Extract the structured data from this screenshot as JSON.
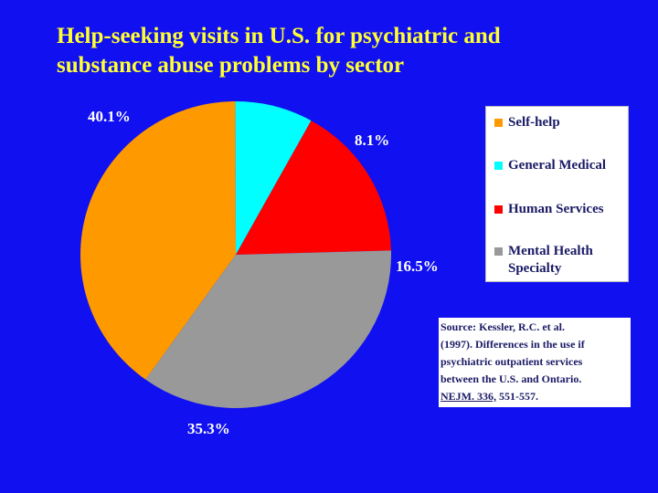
{
  "title_lines": [
    "Help-seeking visits in U.S. for psychiatric and",
    "substance abuse problems by sector"
  ],
  "chart_data": {
    "type": "pie",
    "title": "Help-seeking visits in U.S. for psychiatric and substance abuse problems by sector",
    "legend_position": "right",
    "slices": [
      {
        "label": "Self-help",
        "value": 40.1,
        "value_label": "40.1%",
        "color": "#ff9900"
      },
      {
        "label": "General Medical",
        "value": 8.1,
        "value_label": "8.1%",
        "color": "#00ffff"
      },
      {
        "label": "Human Services",
        "value": 16.5,
        "value_label": "16.5%",
        "color": "#ff0000"
      },
      {
        "label": "Mental Health Specialty",
        "value": 35.3,
        "value_label": "35.3%",
        "color": "#999999"
      }
    ]
  },
  "legend": {
    "items": [
      {
        "label": "Self-help",
        "color": "#ff9900"
      },
      {
        "label": "General Medical",
        "color": "#00ffff"
      },
      {
        "label": "Human Services",
        "color": "#ff0000"
      },
      {
        "label": "Mental Health\nSpecialty",
        "color": "#999999"
      }
    ]
  },
  "source": {
    "lines": [
      "Source: Kessler, R.C. et al.",
      "(1997). Differences in the use if",
      "psychiatric outpatient services",
      "between the U.S. and Ontario."
    ],
    "citation_journal": "NEJM. 336,",
    "citation_pages": " 551-557."
  },
  "colors": {
    "background": "#1010f0",
    "title": "#ffff33"
  }
}
